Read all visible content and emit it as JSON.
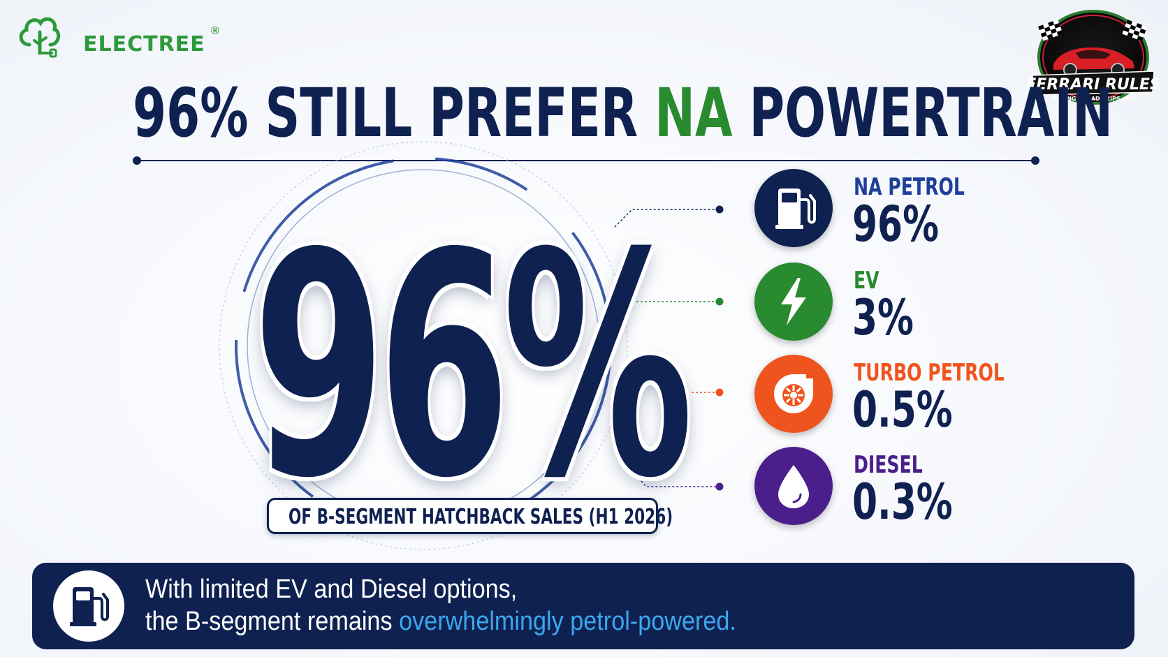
{
  "brand": {
    "name": "ELECTREE",
    "registered_mark": "®",
    "color": "#2c9a3a"
  },
  "badge": {
    "title": "FERRARI RULES",
    "tagline": "RACING · ROAD TRIPS · EV"
  },
  "headline": {
    "part1": "96% STILL PREFER ",
    "accent": "NA",
    "part2": " POWERTRAIN",
    "accent_color": "#2a8a30"
  },
  "hero": {
    "value": "96%",
    "caption": "OF B-SEGMENT HATCHBACK SALES (H1 2026)"
  },
  "breakdown": [
    {
      "label": "NA PETROL",
      "value": "96%",
      "icon": "fuel-pump-icon",
      "color": "#0f2150"
    },
    {
      "label": "EV",
      "value": "3%",
      "icon": "lightning-icon",
      "color": "#2a8a30"
    },
    {
      "label": "TURBO PETROL",
      "value": "0.5%",
      "icon": "turbo-icon",
      "color": "#f0541e"
    },
    {
      "label": "DIESEL",
      "value": "0.3%",
      "icon": "droplet-icon",
      "color": "#4a1f8c"
    }
  ],
  "banner": {
    "line1": "With limited EV and Diesel options,",
    "line2_start": "the B-segment remains ",
    "line2_highlight": "overwhelmingly petrol-powered.",
    "icon": "fuel-pump-icon"
  }
}
